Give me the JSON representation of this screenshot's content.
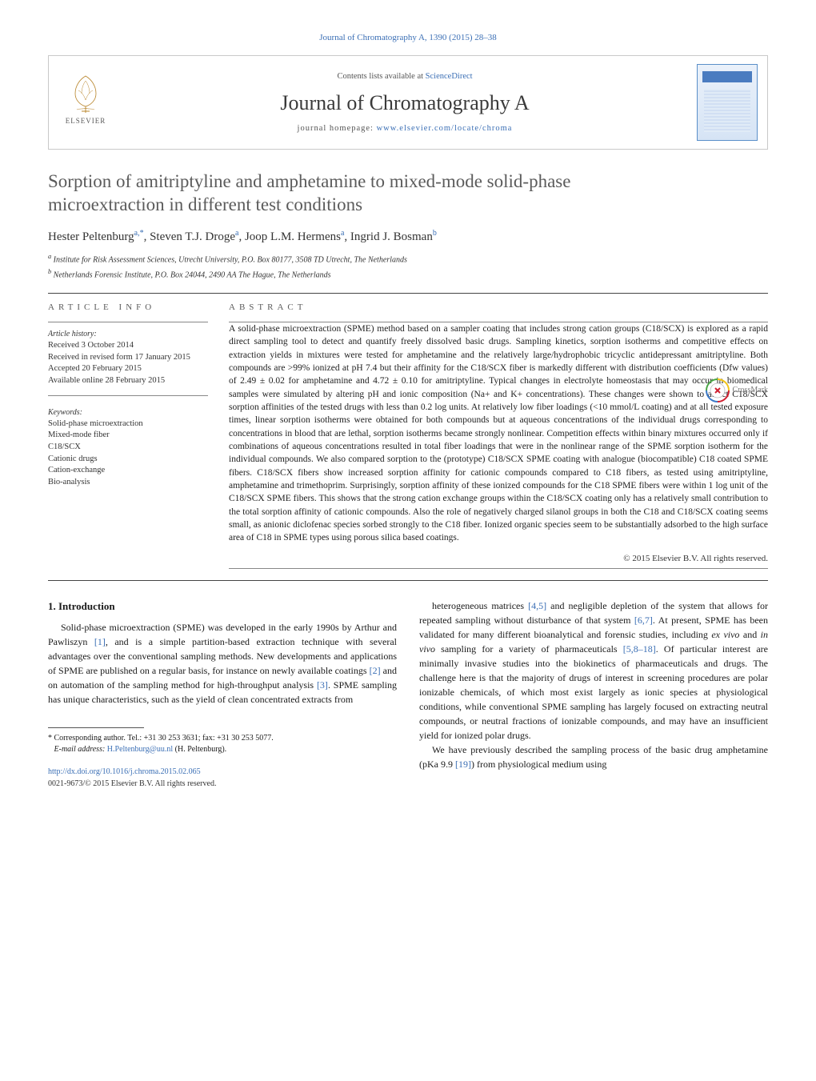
{
  "journal_ref": "Journal of Chromatography A, 1390 (2015) 28–38",
  "header": {
    "elsevier": "ELSEVIER",
    "lists_prefix": "Contents lists available at ",
    "lists_link": "ScienceDirect",
    "journal_name": "Journal of Chromatography A",
    "homepage_prefix": "journal homepage: ",
    "homepage_url": "www.elsevier.com/locate/chroma"
  },
  "crossmark": "CrossMark",
  "title": "Sorption of amitriptyline and amphetamine to mixed-mode solid-phase microextraction in different test conditions",
  "authors_html": {
    "a1_name": "Hester Peltenburg",
    "a1_sup": "a,*",
    "a2_name": "Steven T.J. Droge",
    "a2_sup": "a",
    "a3_name": "Joop L.M. Hermens",
    "a3_sup": "a",
    "a4_name": "Ingrid J. Bosman",
    "a4_sup": "b"
  },
  "affiliations": {
    "a": "Institute for Risk Assessment Sciences, Utrecht University, P.O. Box 80177, 3508 TD Utrecht, The Netherlands",
    "b": "Netherlands Forensic Institute, P.O. Box 24044, 2490 AA The Hague, The Netherlands"
  },
  "article_info": {
    "heading": "ARTICLE INFO",
    "history_label": "Article history:",
    "history": [
      "Received 3 October 2014",
      "Received in revised form 17 January 2015",
      "Accepted 20 February 2015",
      "Available online 28 February 2015"
    ],
    "keywords_label": "Keywords:",
    "keywords": [
      "Solid-phase microextraction",
      "Mixed-mode fiber",
      "C18/SCX",
      "Cationic drugs",
      "Cation-exchange",
      "Bio-analysis"
    ]
  },
  "abstract": {
    "heading": "ABSTRACT",
    "text": "A solid-phase microextraction (SPME) method based on a sampler coating that includes strong cation groups (C18/SCX) is explored as a rapid direct sampling tool to detect and quantify freely dissolved basic drugs. Sampling kinetics, sorption isotherms and competitive effects on extraction yields in mixtures were tested for amphetamine and the relatively large/hydrophobic tricyclic antidepressant amitriptyline. Both compounds are >99% ionized at pH 7.4 but their affinity for the C18/SCX fiber is markedly different with distribution coefficients (Dfw values) of 2.49 ± 0.02 for amphetamine and 4.72 ± 0.10 for amitriptyline. Typical changes in electrolyte homeostasis that may occur in biomedical samples were simulated by altering pH and ionic composition (Na+ and K+ concentrations). These changes were shown to affect C18/SCX sorption affinities of the tested drugs with less than 0.2 log units. At relatively low fiber loadings (<10 mmol/L coating) and at all tested exposure times, linear sorption isotherms were obtained for both compounds but at aqueous concentrations of the individual drugs corresponding to concentrations in blood that are lethal, sorption isotherms became strongly nonlinear. Competition effects within binary mixtures occurred only if combinations of aqueous concentrations resulted in total fiber loadings that were in the nonlinear range of the SPME sorption isotherm for the individual compounds. We also compared sorption to the (prototype) C18/SCX SPME coating with analogue (biocompatible) C18 coated SPME fibers. C18/SCX fibers show increased sorption affinity for cationic compounds compared to C18 fibers, as tested using amitriptyline, amphetamine and trimethoprim. Surprisingly, sorption affinity of these ionized compounds for the C18 SPME fibers were within 1 log unit of the C18/SCX SPME fibers. This shows that the strong cation exchange groups within the C18/SCX coating only has a relatively small contribution to the total sorption affinity of cationic compounds. Also the role of negatively charged silanol groups in both the C18 and C18/SCX coating seems small, as anionic diclofenac species sorbed strongly to the C18 fiber. Ionized organic species seem to be substantially adsorbed to the high surface area of C18 in SPME types using porous silica based coatings.",
    "copyright": "© 2015 Elsevier B.V. All rights reserved."
  },
  "intro": {
    "heading": "1.  Introduction",
    "col1_p1": "Solid-phase microextraction (SPME) was developed in the early 1990s by Arthur and Pawliszyn [1], and is a simple partition-based extraction technique with several advantages over the conventional sampling methods. New developments and applications of SPME are published on a regular basis, for instance on newly available coatings [2] and on automation of the sampling method for high-throughput analysis [3]. SPME sampling has unique characteristics, such as the yield of clean concentrated extracts from",
    "col2_p1": "heterogeneous matrices [4,5] and negligible depletion of the system that allows for repeated sampling without disturbance of that system [6,7]. At present, SPME has been validated for many different bioanalytical and forensic studies, including ex vivo and in vivo sampling for a variety of pharmaceuticals [5,8–18]. Of particular interest are minimally invasive studies into the biokinetics of pharmaceuticals and drugs. The challenge here is that the majority of drugs of interest in screening procedures are polar ionizable chemicals, of which most exist largely as ionic species at physiological conditions, while conventional SPME sampling has largely focused on extracting neutral compounds, or neutral fractions of ionizable compounds, and may have an insufficient yield for ionized polar drugs.",
    "col2_p2": "We have previously described the sampling process of the basic drug amphetamine (pKa 9.9 [19]) from physiological medium using"
  },
  "footnote": {
    "corr": "Corresponding author. Tel.: +31 30 253 3631; fax: +31 30 253 5077.",
    "email_label": "E-mail address: ",
    "email": "H.Peltenburg@uu.nl",
    "email_who": " (H. Peltenburg)."
  },
  "doi_url": "http://dx.doi.org/10.1016/j.chroma.2015.02.065",
  "issn_line": "0021-9673/© 2015 Elsevier B.V. All rights reserved.",
  "colors": {
    "link": "#3b6fb5",
    "title_gray": "#5b5b5b",
    "text": "#1a1a1a",
    "rule": "#444444"
  }
}
